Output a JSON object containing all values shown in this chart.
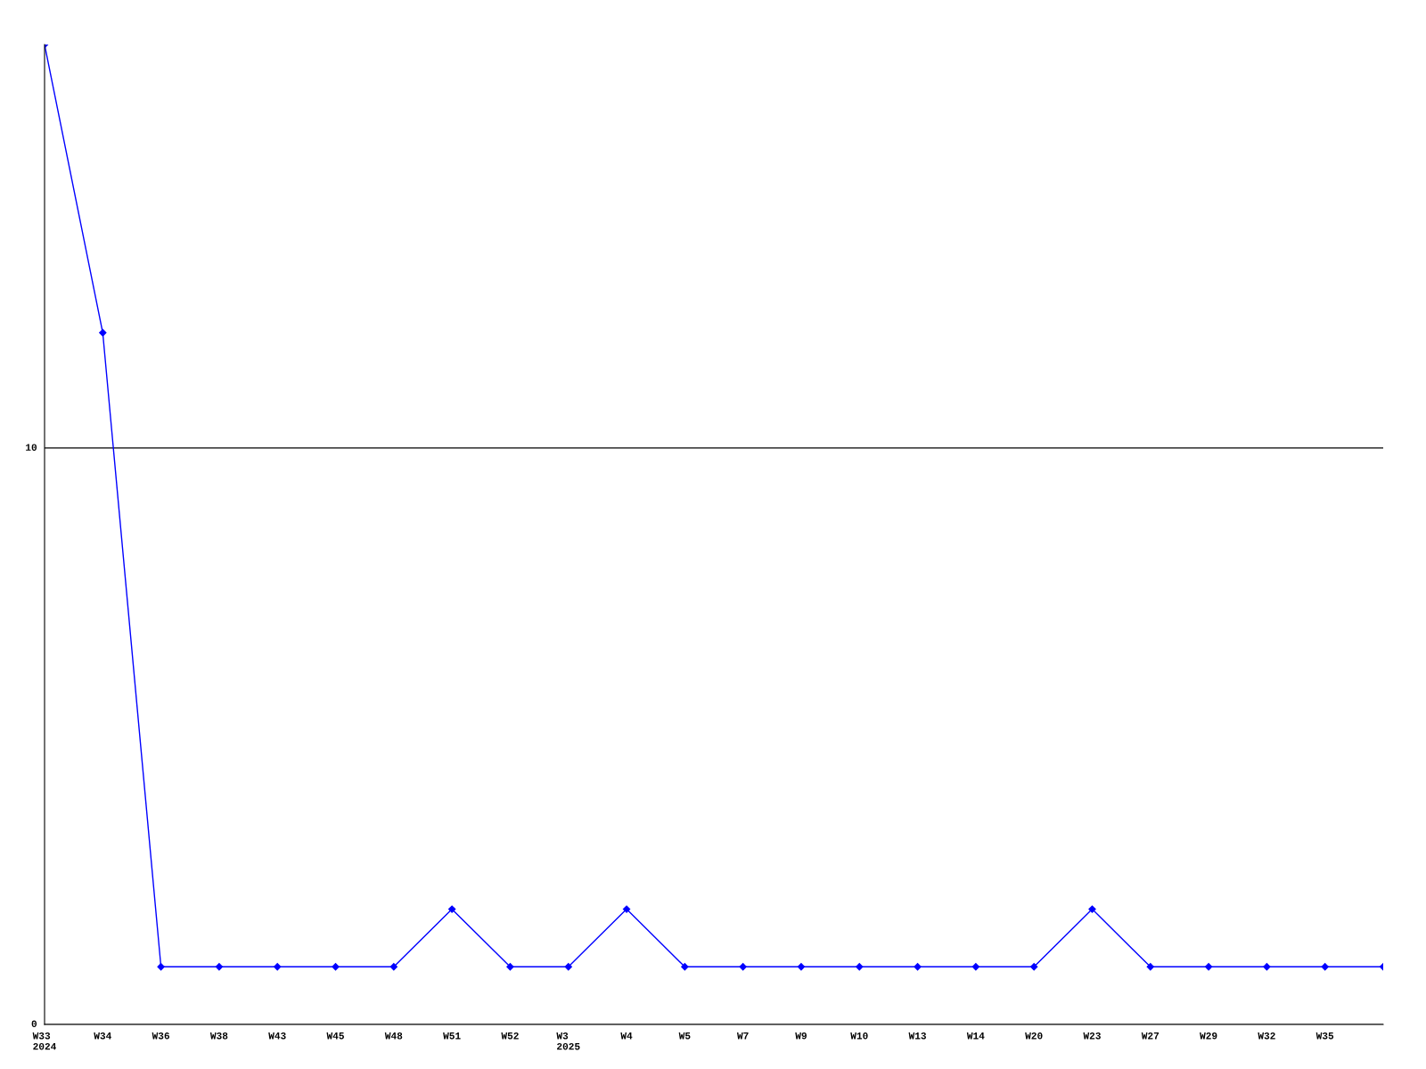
{
  "chart_data": {
    "type": "line",
    "categories": [
      "W33\n2024",
      "W34",
      "W36",
      "W38",
      "W43",
      "W45",
      "W48",
      "W51",
      "W52",
      "W3\n2025",
      "W4",
      "W5",
      "W7",
      "W9",
      "W10",
      "W13",
      "W14",
      "W20",
      "W23",
      "W27",
      "W29",
      "W32",
      "W35",
      null
    ],
    "series": [
      {
        "color": "#0000ff",
        "values": [
          17,
          12,
          1,
          1,
          1,
          1,
          1,
          2,
          1,
          1,
          2,
          1,
          1,
          1,
          1,
          1,
          1,
          1,
          2,
          1,
          1,
          1,
          1,
          1
        ]
      }
    ],
    "ylim": [
      0,
      17
    ],
    "yticks": [
      0,
      10
    ],
    "grid": "y",
    "marker": "diamond",
    "line_style": "solid",
    "legend": false
  }
}
